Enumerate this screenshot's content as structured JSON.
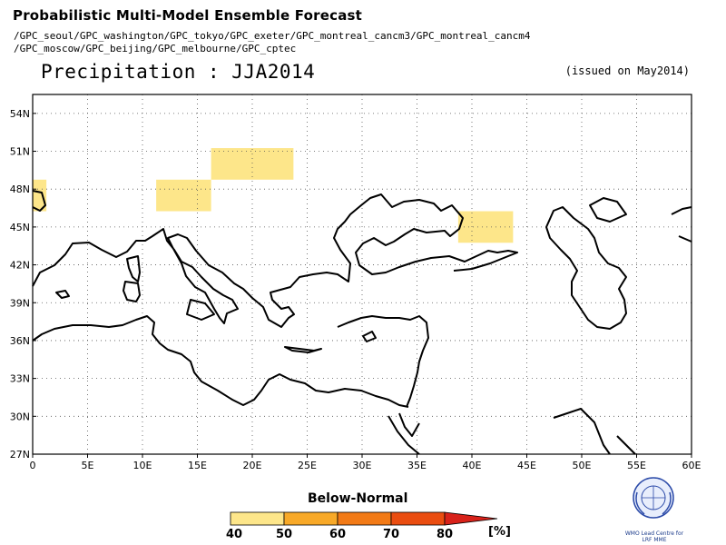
{
  "header": {
    "title": "Probabilistic Multi-Model Ensemble Forecast",
    "models_line1": "/GPC_seoul/GPC_washington/GPC_tokyo/GPC_exeter/GPC_montreal_cancm3/GPC_montreal_cancm4",
    "models_line2": "/GPC_moscow/GPC_beijing/GPC_melbourne/GPC_cptec",
    "variable": "Precipitation : JJA2014",
    "issued": "(issued on May2014)"
  },
  "map": {
    "lon_labels": [
      "0",
      "5E",
      "10E",
      "15E",
      "20E",
      "25E",
      "30E",
      "35E",
      "40E",
      "45E",
      "50E",
      "55E",
      "60E"
    ],
    "lat_labels": [
      "54N",
      "51N",
      "48N",
      "45N",
      "42N",
      "39N",
      "36N",
      "33N",
      "30N",
      "27N"
    ],
    "anomaly_cells": [
      {
        "lon": [
          0,
          1.25
        ],
        "lat": [
          46.25,
          48.75
        ],
        "category": "40-50"
      },
      {
        "lon": [
          11.25,
          16.25
        ],
        "lat": [
          46.25,
          48.75
        ],
        "category": "40-50"
      },
      {
        "lon": [
          16.25,
          23.75
        ],
        "lat": [
          48.75,
          51.25
        ],
        "category": "40-50"
      },
      {
        "lon": [
          38.75,
          43.75
        ],
        "lat": [
          43.75,
          46.25
        ],
        "category": "40-50"
      }
    ],
    "colors": {
      "40-50": "#fde68a",
      "50-60": "#f8a928",
      "60-70": "#f27a16",
      "70-80": "#ea4d10",
      "80+": "#d8221a"
    }
  },
  "legend": {
    "title": "Below-Normal",
    "ticks": [
      "40",
      "50",
      "60",
      "70",
      "80"
    ],
    "unit": "[%]"
  },
  "logo": {
    "caption_line1": "WMO Lead Centre for",
    "caption_line2": "LRF MME"
  }
}
